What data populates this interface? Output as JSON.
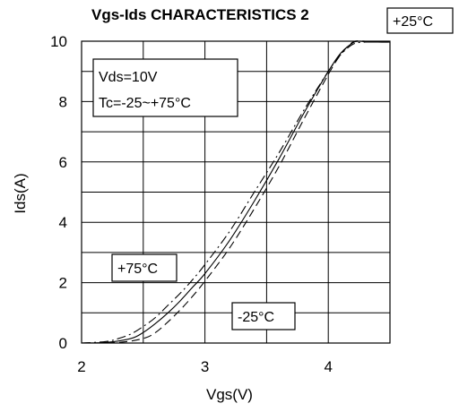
{
  "chart_data": {
    "type": "line",
    "title": "Vgs-Ids CHARACTERISTICS 2",
    "xlabel": "Vgs(V)",
    "ylabel": "Ids(A)",
    "xlim": [
      2,
      4.5
    ],
    "ylim": [
      0,
      10
    ],
    "xticks": [
      2,
      3,
      4
    ],
    "yticks": [
      0,
      2,
      4,
      6,
      8,
      10
    ],
    "grid": true,
    "conditions": [
      "Vds=10V",
      "Tc=-25~+75°C"
    ],
    "series": [
      {
        "name": "+25°C",
        "style": "solid",
        "x": [
          2.0,
          2.2,
          2.4,
          2.5,
          2.6,
          2.7,
          2.8,
          2.9,
          3.0,
          3.2,
          3.4,
          3.6,
          3.8,
          4.0,
          4.1,
          4.2,
          4.25,
          4.3,
          4.4,
          4.5
        ],
        "y": [
          0,
          0.02,
          0.15,
          0.35,
          0.65,
          1.0,
          1.4,
          1.85,
          2.3,
          3.4,
          4.7,
          6.1,
          7.6,
          9.0,
          9.6,
          9.95,
          10.0,
          9.98,
          9.97,
          9.97
        ]
      },
      {
        "name": "+75°C",
        "style": "dashdot",
        "x": [
          2.0,
          2.2,
          2.3,
          2.4,
          2.5,
          2.6,
          2.7,
          2.8,
          2.9,
          3.0,
          3.2,
          3.4,
          3.6,
          3.8,
          4.0,
          4.1,
          4.2,
          4.3,
          4.4,
          4.5
        ],
        "y": [
          0,
          0.05,
          0.15,
          0.3,
          0.55,
          0.85,
          1.25,
          1.65,
          2.1,
          2.6,
          3.7,
          5.0,
          6.3,
          7.7,
          9.0,
          9.55,
          9.9,
          9.97,
          9.97,
          9.97
        ]
      },
      {
        "name": "-25°C",
        "style": "dashed",
        "x": [
          2.0,
          2.3,
          2.5,
          2.6,
          2.7,
          2.8,
          2.9,
          3.0,
          3.2,
          3.4,
          3.6,
          3.8,
          4.0,
          4.1,
          4.2,
          4.3,
          4.4,
          4.5
        ],
        "y": [
          0,
          0.02,
          0.15,
          0.35,
          0.7,
          1.1,
          1.55,
          2.05,
          3.15,
          4.45,
          5.85,
          7.4,
          8.9,
          9.55,
          9.97,
          10.0,
          9.98,
          9.97
        ]
      }
    ],
    "annotations": [
      {
        "text": "+25°C",
        "target": "+25°C"
      },
      {
        "text": "+75°C",
        "target": "+75°C"
      },
      {
        "text": "-25°C",
        "target": "-25°C"
      }
    ]
  }
}
